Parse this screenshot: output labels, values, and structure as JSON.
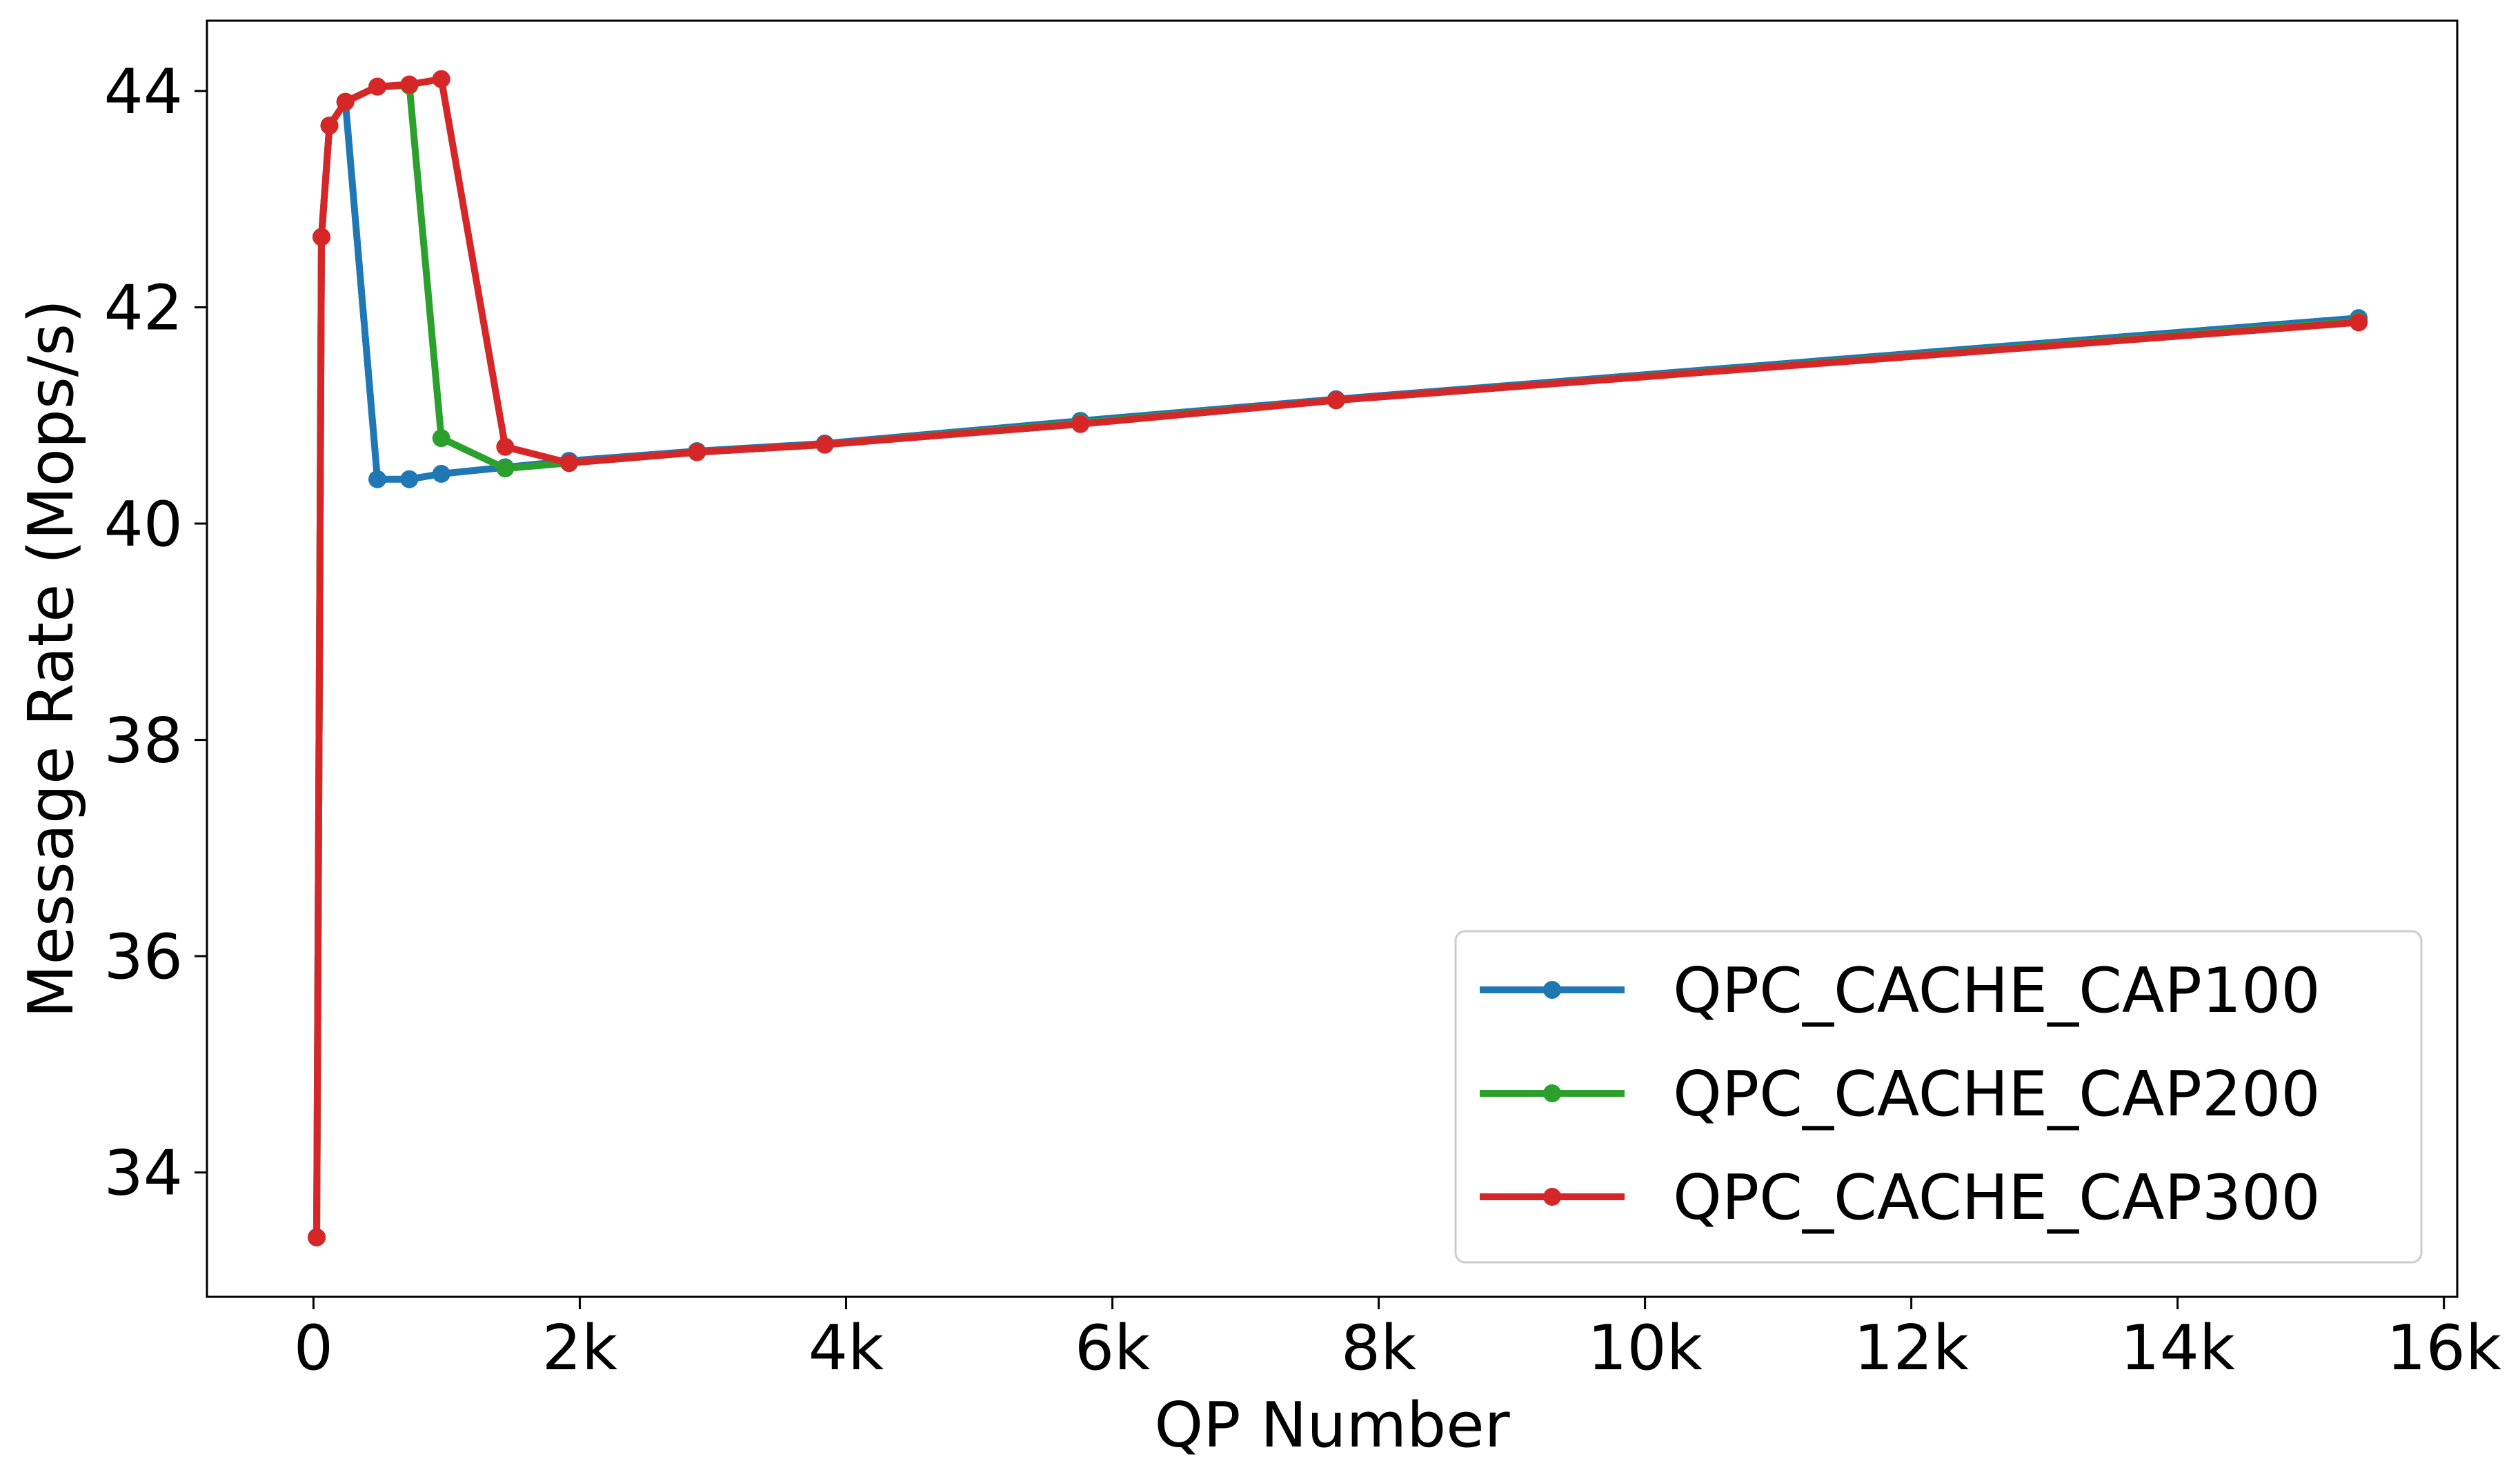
{
  "chart_data": {
    "type": "line",
    "title": "",
    "xlabel": "QP Number",
    "ylabel": "Message Rate (Mops/s)",
    "xlim": [
      -800,
      16100
    ],
    "ylim": [
      32.85,
      44.65
    ],
    "xticks": [
      0,
      2000,
      4000,
      6000,
      8000,
      10000,
      12000,
      14000,
      16000
    ],
    "xtick_labels": [
      "0",
      "2k",
      "4k",
      "6k",
      "8k",
      "10k",
      "12k",
      "14k",
      "16k"
    ],
    "yticks": [
      34,
      36,
      38,
      40,
      42,
      44
    ],
    "ytick_labels": [
      "34",
      "36",
      "38",
      "40",
      "42",
      "44"
    ],
    "grid": false,
    "legend_position": "lower-right",
    "series": [
      {
        "name": "QPC_CACHE_CAP100",
        "color": "#1f77b4",
        "x": [
          24,
          60,
          120,
          240,
          480,
          720,
          960,
          1440,
          1920,
          2880,
          3840,
          5760,
          7680,
          15360
        ],
        "y": [
          33.4,
          42.65,
          43.68,
          43.9,
          40.41,
          40.41,
          40.46,
          40.52,
          40.58,
          40.67,
          40.74,
          40.95,
          41.15,
          41.9
        ]
      },
      {
        "name": "QPC_CACHE_CAP200",
        "color": "#2ca02c",
        "x": [
          24,
          60,
          120,
          240,
          480,
          720,
          960,
          1440,
          1920,
          2880,
          3840,
          5760,
          7680,
          15360
        ],
        "y": [
          33.4,
          42.65,
          43.68,
          43.9,
          44.04,
          44.05,
          40.79,
          40.51,
          40.56,
          40.66,
          40.73,
          40.93,
          41.14,
          41.87
        ]
      },
      {
        "name": "QPC_CACHE_CAP300",
        "color": "#d62728",
        "x": [
          24,
          60,
          120,
          240,
          480,
          720,
          960,
          1440,
          1920,
          2880,
          3840,
          5760,
          7680,
          15360
        ],
        "y": [
          33.4,
          42.65,
          43.68,
          43.9,
          44.04,
          44.06,
          44.11,
          40.71,
          40.56,
          40.66,
          40.73,
          40.92,
          41.14,
          41.86
        ]
      }
    ]
  }
}
